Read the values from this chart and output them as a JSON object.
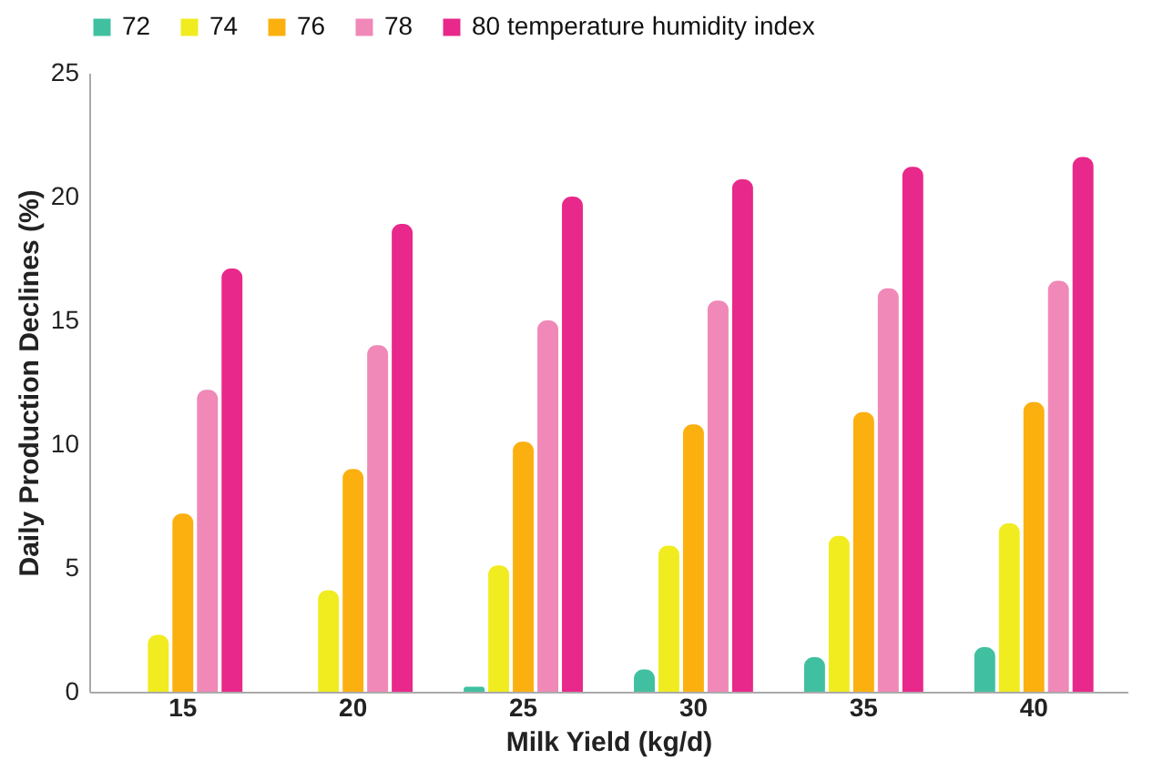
{
  "chart_data": {
    "type": "bar",
    "xlabel": "Milk Yield (kg/d)",
    "ylabel": "Daily Production Declines (%)",
    "categories": [
      "15",
      "20",
      "25",
      "30",
      "35",
      "40"
    ],
    "series": [
      {
        "name": "72",
        "color": "#40c0a0",
        "values": [
          0,
          0,
          0.2,
          0.9,
          1.4,
          1.8
        ]
      },
      {
        "name": "74",
        "color": "#f0ec20",
        "values": [
          2.3,
          4.1,
          5.1,
          5.9,
          6.3,
          6.8
        ]
      },
      {
        "name": "76",
        "color": "#fbb010",
        "values": [
          7.2,
          9.0,
          10.1,
          10.8,
          11.3,
          11.7
        ]
      },
      {
        "name": "78",
        "color": "#f088b8",
        "values": [
          12.2,
          14.0,
          15.0,
          15.8,
          16.3,
          16.6
        ]
      },
      {
        "name": "80 temperature humidity index",
        "color": "#e8288a",
        "values": [
          17.1,
          18.9,
          20.0,
          20.7,
          21.2,
          21.6
        ]
      }
    ],
    "ylim": [
      0,
      25
    ],
    "yticks": [
      0,
      5,
      10,
      15,
      20,
      25
    ],
    "grid": false,
    "legend": "top"
  }
}
